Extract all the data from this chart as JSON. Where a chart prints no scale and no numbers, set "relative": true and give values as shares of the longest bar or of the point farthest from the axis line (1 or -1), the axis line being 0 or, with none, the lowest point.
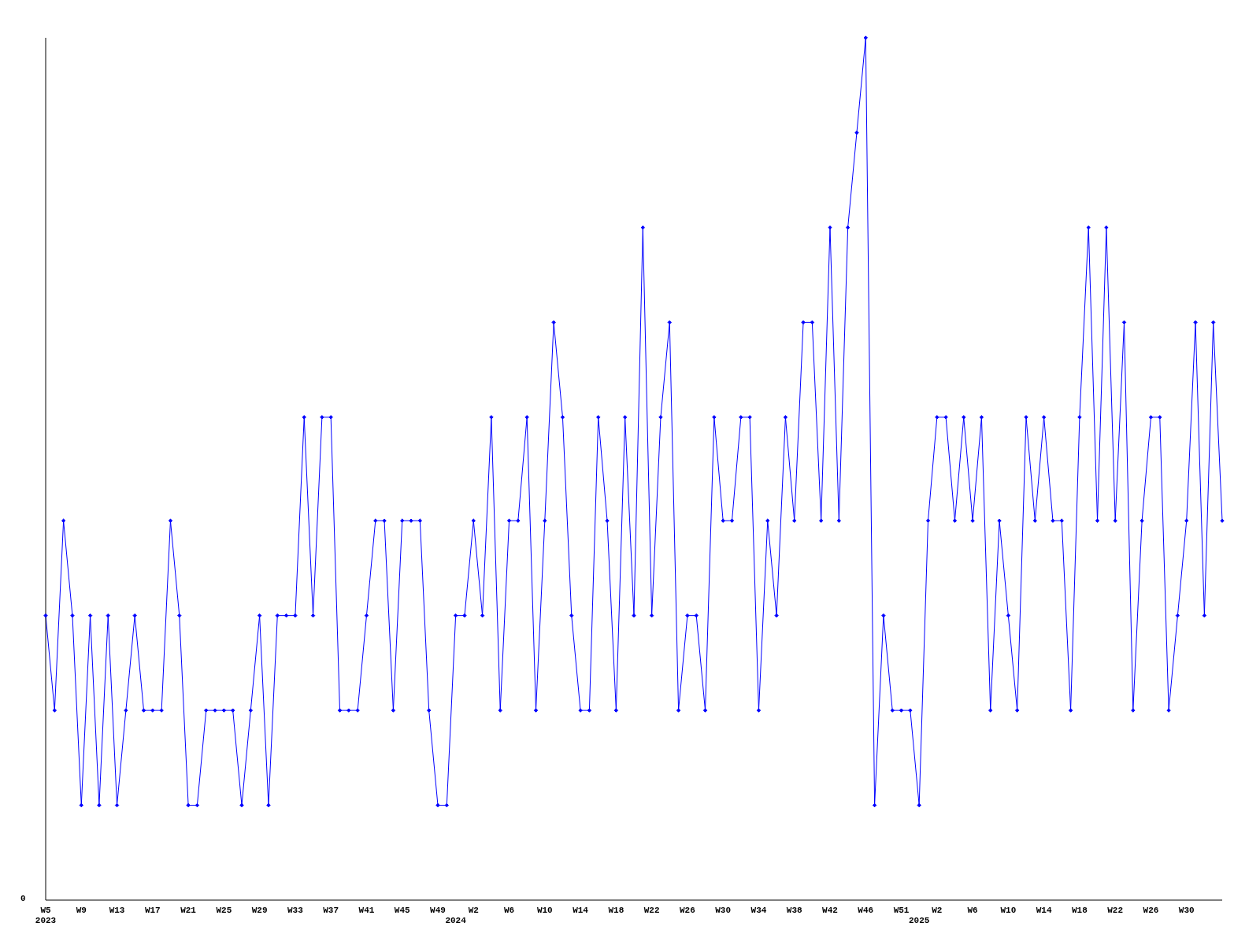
{
  "chart_data": {
    "type": "line",
    "relative": true,
    "color": "#0000ff",
    "marker": "diamond",
    "tick_labels": "x",
    "annotations": [
      "0"
    ],
    "categories": [
      "W5\n2023",
      null,
      null,
      null,
      "W9",
      null,
      null,
      null,
      "W13",
      null,
      null,
      null,
      "W17",
      null,
      null,
      null,
      "W21",
      null,
      null,
      null,
      "W25",
      null,
      null,
      null,
      "W29",
      null,
      null,
      null,
      "W33",
      null,
      null,
      null,
      "W37",
      null,
      null,
      null,
      "W41",
      null,
      null,
      null,
      "W45",
      null,
      null,
      null,
      "W49",
      null,
      "\n2024",
      null,
      "W2",
      null,
      null,
      null,
      "W6",
      null,
      null,
      null,
      "W10",
      null,
      null,
      null,
      "W14",
      null,
      null,
      null,
      "W18",
      null,
      null,
      null,
      "W22",
      null,
      null,
      null,
      "W26",
      null,
      null,
      null,
      "W30",
      null,
      null,
      null,
      "W34",
      null,
      null,
      null,
      "W38",
      null,
      null,
      null,
      "W42",
      null,
      null,
      null,
      "W46",
      null,
      null,
      null,
      "W51",
      null,
      "\n2025",
      null,
      "W2",
      null,
      null,
      null,
      "W6",
      null,
      null,
      null,
      "W10",
      null,
      null,
      null,
      "W14",
      null,
      null,
      null,
      "W18",
      null,
      null,
      null,
      "W22",
      null,
      null,
      null,
      "W26",
      null,
      null,
      null,
      "W30",
      null,
      null,
      null,
      null
    ],
    "values": [
      0.33,
      0.22,
      0.44,
      0.33,
      0.11,
      0.33,
      0.11,
      0.33,
      0.11,
      0.22,
      0.33,
      0.22,
      0.22,
      0.22,
      0.44,
      0.33,
      0.11,
      0.11,
      0.22,
      0.22,
      0.22,
      0.22,
      0.11,
      0.22,
      0.33,
      0.11,
      0.33,
      0.33,
      0.33,
      0.56,
      0.33,
      0.56,
      0.56,
      0.22,
      0.22,
      0.22,
      0.33,
      0.44,
      0.44,
      0.22,
      0.44,
      0.44,
      0.44,
      0.22,
      0.11,
      0.11,
      0.33,
      0.33,
      0.44,
      0.33,
      0.56,
      0.22,
      0.44,
      0.44,
      0.56,
      0.22,
      0.44,
      0.67,
      0.56,
      0.33,
      0.22,
      0.22,
      0.56,
      0.44,
      0.22,
      0.56,
      0.33,
      0.78,
      0.33,
      0.56,
      0.67,
      0.22,
      0.33,
      0.33,
      0.22,
      0.56,
      0.44,
      0.44,
      0.56,
      0.56,
      0.22,
      0.44,
      0.33,
      0.56,
      0.44,
      0.67,
      0.67,
      0.44,
      0.78,
      0.44,
      0.78,
      0.89,
      1,
      0.11,
      0.33,
      0.22,
      0.22,
      0.22,
      0.11,
      0.44,
      0.56,
      0.56,
      0.44,
      0.56,
      0.44,
      0.56,
      0.22,
      0.44,
      0.33,
      0.22,
      0.56,
      0.44,
      0.56,
      0.44,
      0.44,
      0.22,
      0.56,
      0.78,
      0.44,
      0.78,
      0.44,
      0.67,
      0.22,
      0.44,
      0.56,
      0.56,
      0.22,
      0.33,
      0.44,
      0.67,
      0.33,
      0.67,
      0.44
    ]
  }
}
